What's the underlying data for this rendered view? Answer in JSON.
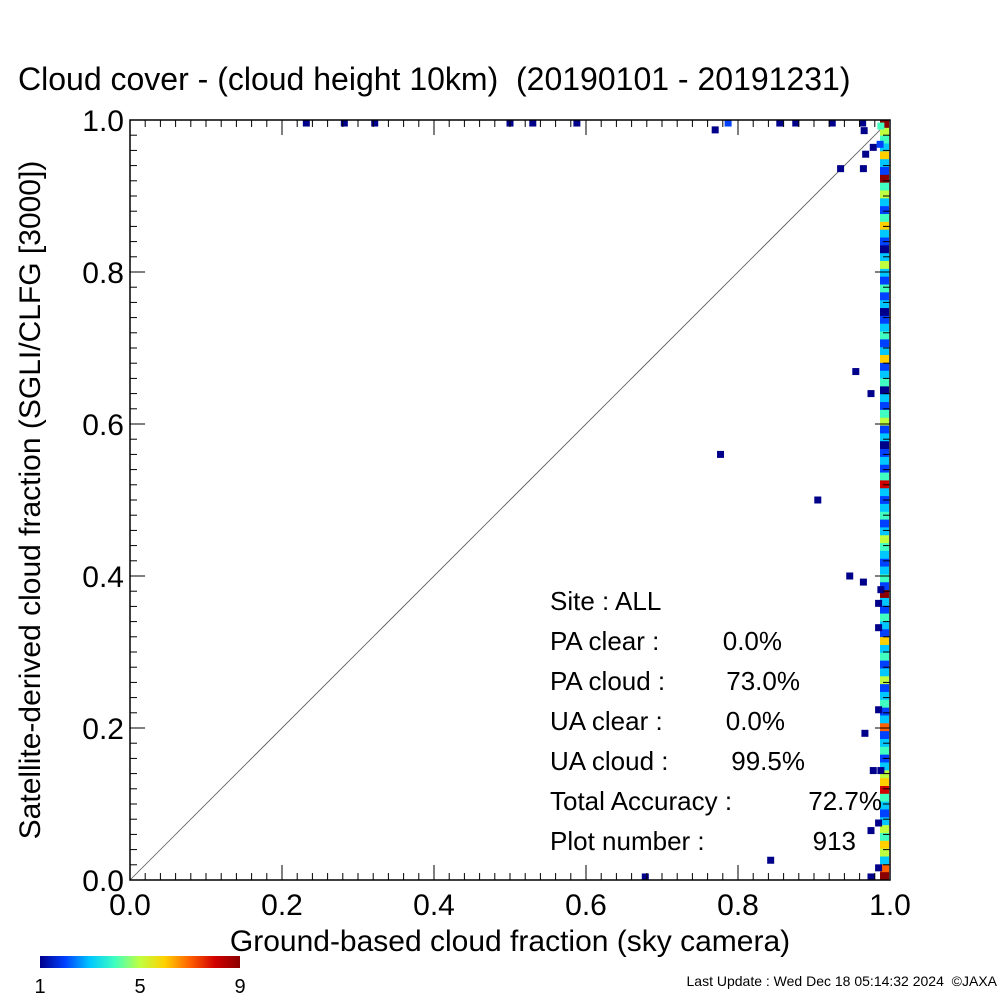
{
  "chart_data": {
    "type": "scatter",
    "title": "Cloud cover - (cloud height 10km)  (20190101 - 20191231)",
    "xlabel": "Ground-based cloud fraction (sky camera)",
    "ylabel": "Satellite-derived cloud fraction (SGLI/CLFG [3000])",
    "xlim": [
      0,
      1
    ],
    "ylim": [
      0,
      1
    ],
    "x_ticks": [
      "0.0",
      "0.2",
      "0.4",
      "0.6",
      "0.8",
      "1.0"
    ],
    "y_ticks": [
      "0.0",
      "0.2",
      "0.4",
      "0.6",
      "0.8",
      "1.0"
    ],
    "grid": false,
    "diagonal_line": true,
    "stats": [
      {
        "label": "Site : ALL",
        "value": ""
      },
      {
        "label": "PA clear :",
        "value": "0.0%"
      },
      {
        "label": "PA cloud :",
        "value": "73.0%"
      },
      {
        "label": "UA clear :",
        "value": "0.0%"
      },
      {
        "label": "UA cloud :",
        "value": "99.5%"
      },
      {
        "label": "Total Accuracy :",
        "value": "72.7%"
      },
      {
        "label": "Plot number :",
        "value": "913"
      }
    ],
    "colorbar": {
      "ticks": [
        "1",
        "5",
        "9"
      ],
      "min": 1,
      "max": 9,
      "colors": [
        "#00008b",
        "#0040ff",
        "#00c8ff",
        "#40ffc0",
        "#c0ff40",
        "#ffd000",
        "#ff6000",
        "#d00000",
        "#8b0000"
      ]
    },
    "points": [
      {
        "x": 0.232,
        "y": 0.996,
        "c": 1
      },
      {
        "x": 0.282,
        "y": 0.996,
        "c": 1
      },
      {
        "x": 0.322,
        "y": 0.996,
        "c": 1
      },
      {
        "x": 0.5,
        "y": 0.996,
        "c": 1
      },
      {
        "x": 0.53,
        "y": 0.996,
        "c": 1
      },
      {
        "x": 0.588,
        "y": 0.996,
        "c": 1
      },
      {
        "x": 0.77,
        "y": 0.987,
        "c": 1
      },
      {
        "x": 0.787,
        "y": 0.996,
        "c": 2
      },
      {
        "x": 0.855,
        "y": 0.996,
        "c": 1
      },
      {
        "x": 0.876,
        "y": 0.996,
        "c": 1
      },
      {
        "x": 0.924,
        "y": 0.996,
        "c": 1
      },
      {
        "x": 0.964,
        "y": 0.996,
        "c": 1
      },
      {
        "x": 0.966,
        "y": 0.986,
        "c": 1
      },
      {
        "x": 0.968,
        "y": 0.955,
        "c": 1
      },
      {
        "x": 0.978,
        "y": 0.964,
        "c": 1
      },
      {
        "x": 0.965,
        "y": 0.936,
        "c": 1
      },
      {
        "x": 0.935,
        "y": 0.936,
        "c": 1
      },
      {
        "x": 0.988,
        "y": 0.992,
        "c": 4
      },
      {
        "x": 0.987,
        "y": 0.968,
        "c": 2
      },
      {
        "x": 0.955,
        "y": 0.669,
        "c": 1
      },
      {
        "x": 0.975,
        "y": 0.64,
        "c": 1
      },
      {
        "x": 0.777,
        "y": 0.56,
        "c": 1
      },
      {
        "x": 0.905,
        "y": 0.5,
        "c": 1
      },
      {
        "x": 0.947,
        "y": 0.4,
        "c": 1
      },
      {
        "x": 0.965,
        "y": 0.392,
        "c": 1
      },
      {
        "x": 0.988,
        "y": 0.382,
        "c": 1
      },
      {
        "x": 0.985,
        "y": 0.364,
        "c": 1
      },
      {
        "x": 0.985,
        "y": 0.332,
        "c": 1
      },
      {
        "x": 0.967,
        "y": 0.193,
        "c": 1
      },
      {
        "x": 0.985,
        "y": 0.224,
        "c": 1
      },
      {
        "x": 0.978,
        "y": 0.144,
        "c": 1
      },
      {
        "x": 0.988,
        "y": 0.144,
        "c": 1
      },
      {
        "x": 0.985,
        "y": 0.075,
        "c": 1
      },
      {
        "x": 0.975,
        "y": 0.065,
        "c": 1
      },
      {
        "x": 0.985,
        "y": 0.016,
        "c": 1
      },
      {
        "x": 0.975,
        "y": 0.004,
        "c": 1
      },
      {
        "x": 0.843,
        "y": 0.026,
        "c": 1
      },
      {
        "x": 0.678,
        "y": 0.004,
        "c": 1
      }
    ],
    "x1_column_colors": [
      9,
      5,
      4,
      3,
      6,
      3,
      2,
      9,
      4,
      5,
      3,
      2,
      4,
      6,
      3,
      2,
      1,
      3,
      5,
      3,
      2,
      4,
      2,
      3,
      1,
      2,
      3,
      4,
      2,
      3,
      6,
      2,
      3,
      4,
      1,
      3,
      2,
      4,
      5,
      2,
      3,
      1,
      2,
      3,
      2,
      4,
      8,
      3,
      2,
      3,
      4,
      2,
      3,
      5,
      4,
      3,
      2,
      3,
      4,
      2,
      9,
      3,
      2,
      4,
      3,
      2,
      6,
      3,
      4,
      2,
      3,
      5,
      2,
      3,
      4,
      2,
      3,
      7,
      2,
      3,
      4,
      2,
      3,
      5,
      6,
      8,
      4,
      3,
      2,
      3,
      5,
      4,
      6,
      5,
      3,
      7,
      9
    ]
  },
  "footer": {
    "last_update": "Last Update : Wed Dec 18 05:14:32 2024  ©JAXA"
  }
}
